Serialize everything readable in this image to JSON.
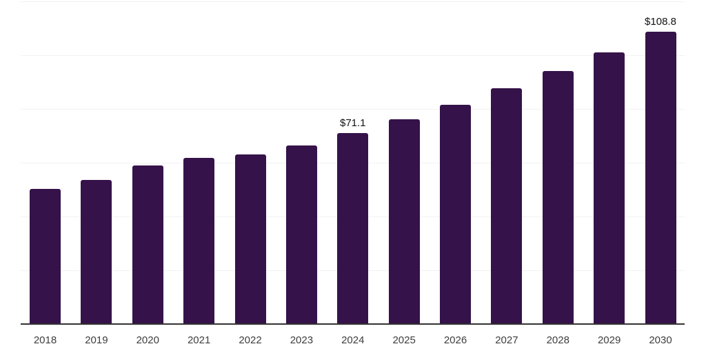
{
  "chart_data": {
    "type": "bar",
    "categories": [
      "2018",
      "2019",
      "2020",
      "2021",
      "2022",
      "2023",
      "2024",
      "2025",
      "2026",
      "2027",
      "2028",
      "2029",
      "2030"
    ],
    "values": [
      50.3,
      53.6,
      59.0,
      61.8,
      63.2,
      66.4,
      71.1,
      76.1,
      81.5,
      87.6,
      94.0,
      101.1,
      108.8
    ],
    "data_labels": [
      "",
      "",
      "",
      "",
      "",
      "",
      "$71.1",
      "",
      "",
      "",
      "",
      "",
      "$108.8"
    ],
    "title": "",
    "xlabel": "",
    "ylabel": "",
    "ylim": [
      0,
      120
    ],
    "grid_step": 20,
    "grid": true,
    "legend": false,
    "colors": {
      "bar": "#351249",
      "axis": "#333333",
      "grid": "#f2f2f2",
      "tick_label": "#3d3d3d",
      "value_label": "#111111"
    }
  }
}
